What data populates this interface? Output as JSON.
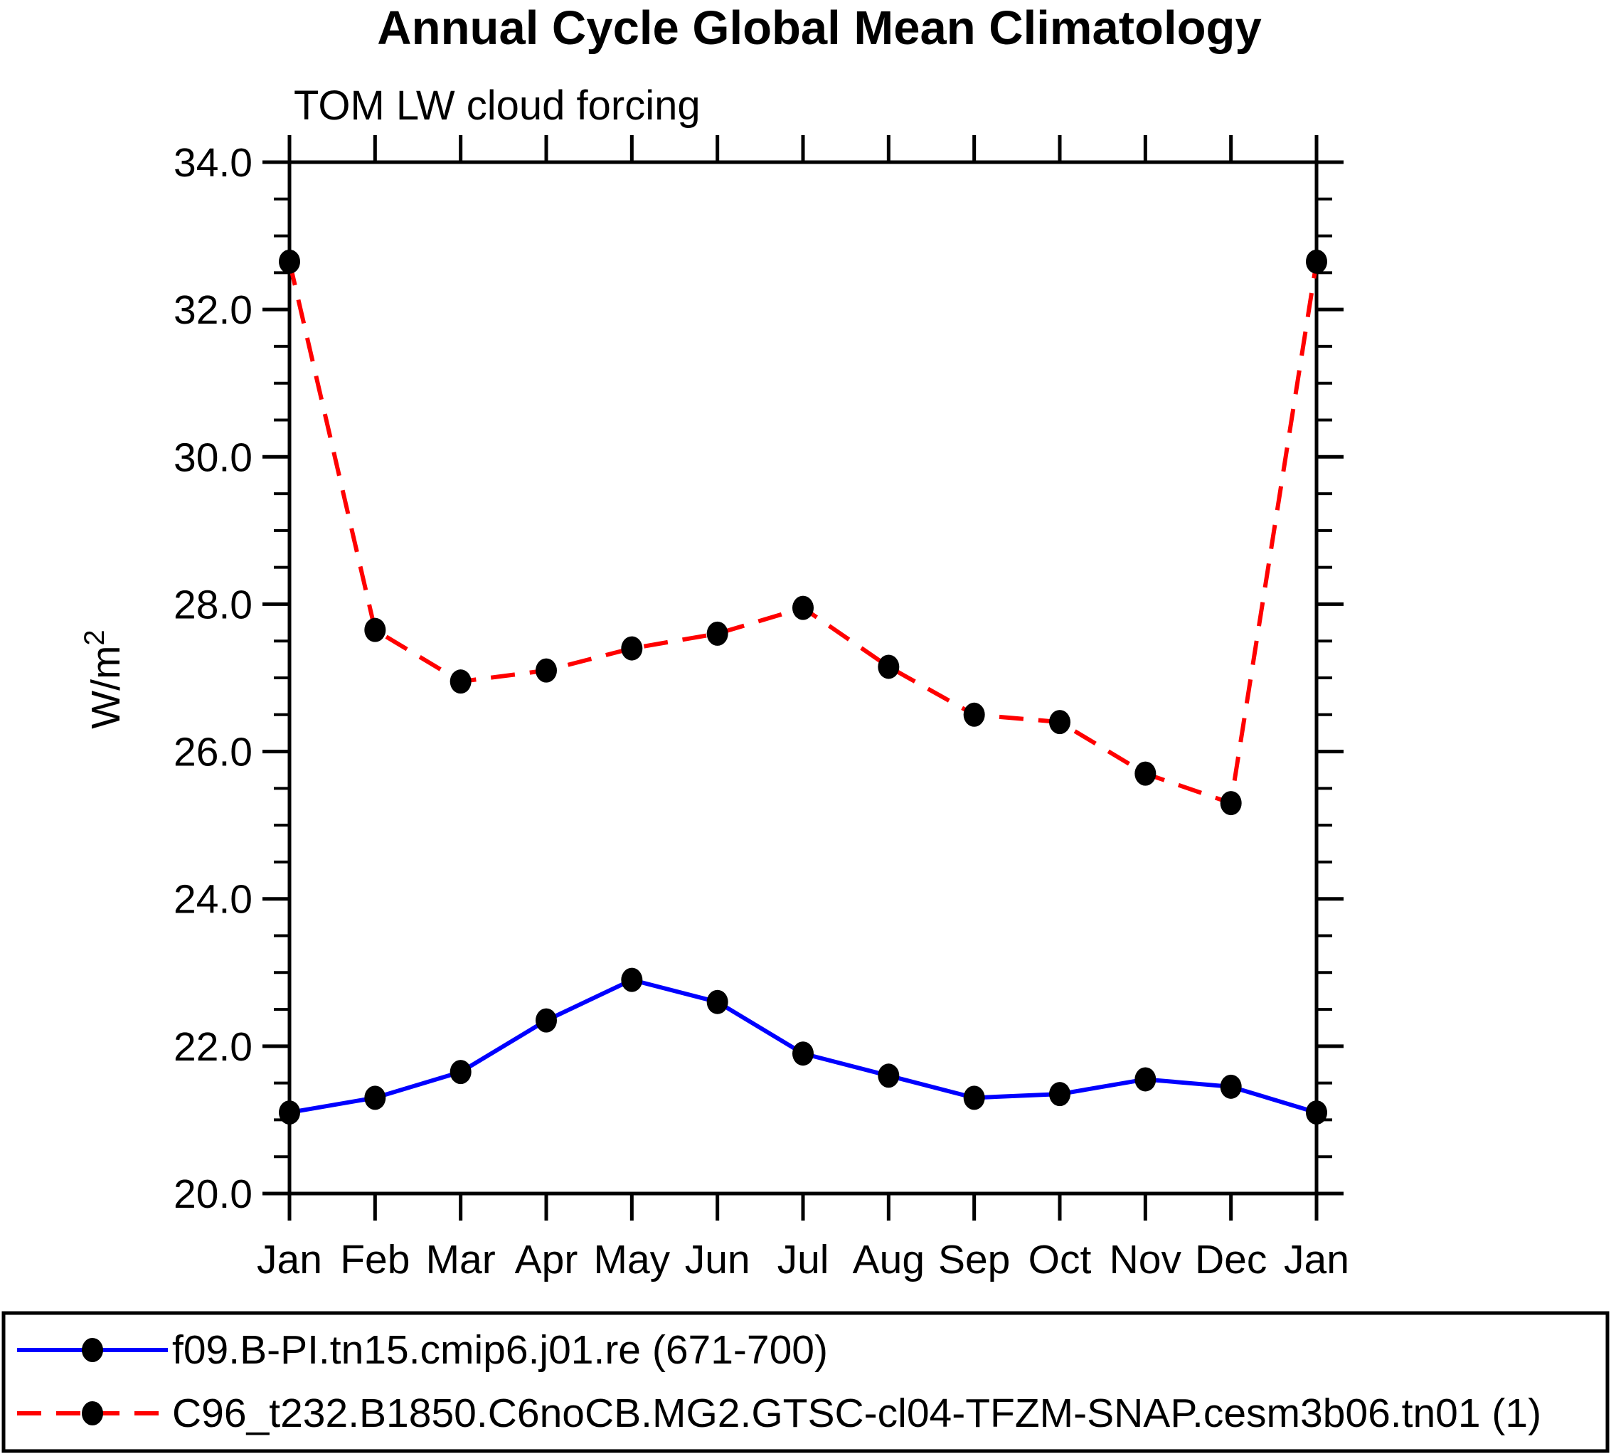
{
  "chart_data": {
    "type": "line",
    "title": "Annual Cycle Global Mean Climatology",
    "subtitle": "TOM LW cloud forcing",
    "ylabel": "W/m²",
    "x_categories": [
      "Jan",
      "Feb",
      "Mar",
      "Apr",
      "May",
      "Jun",
      "Jul",
      "Aug",
      "Sep",
      "Oct",
      "Nov",
      "Dec",
      "Jan"
    ],
    "ylim": [
      20.0,
      34.0
    ],
    "y_major_ticks": [
      20.0,
      22.0,
      24.0,
      26.0,
      28.0,
      30.0,
      32.0,
      34.0
    ],
    "y_tick_labels": [
      "20.0",
      "22.0",
      "24.0",
      "26.0",
      "28.0",
      "30.0",
      "32.0",
      "34.0"
    ],
    "y_minor_step": 0.5,
    "grid": false,
    "legend_position": "bottom",
    "axis_color": "#000000",
    "marker_color": "#000000",
    "series": [
      {
        "name": "f09.B-PI.tn15.cmip6.j01.re (671-700)",
        "color": "#0000ff",
        "line_style": "solid",
        "marker": "filled-circle",
        "values": [
          21.1,
          21.3,
          21.65,
          22.35,
          22.9,
          22.6,
          21.9,
          21.6,
          21.3,
          21.35,
          21.55,
          21.45,
          21.1
        ]
      },
      {
        "name": "C96_t232.B1850.C6noCB.MG2.GTSC-cl04-TFZM-SNAP.cesm3b06.tn01 (1)",
        "color": "#ff0000",
        "line_style": "dashed",
        "marker": "filled-circle",
        "values": [
          32.65,
          27.65,
          26.95,
          27.1,
          27.4,
          27.6,
          27.95,
          27.15,
          26.5,
          26.4,
          25.7,
          25.3,
          32.65
        ]
      }
    ]
  }
}
